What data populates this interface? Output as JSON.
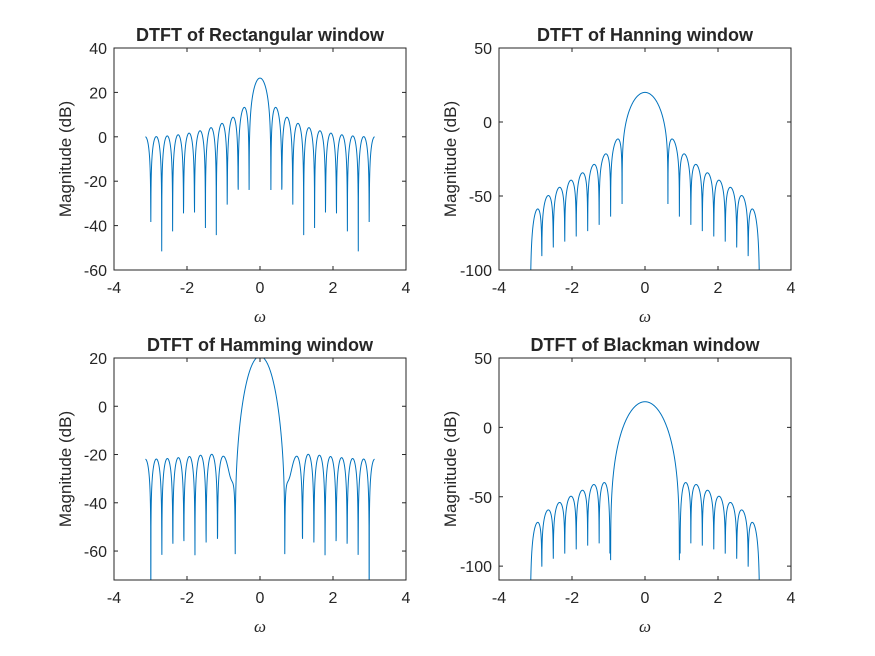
{
  "figure": {
    "background": "#ffffff",
    "line_color": "#0072bd",
    "axis_color": "#262626"
  },
  "chart_data": [
    {
      "type": "line",
      "title": "DTFT of Rectangular window",
      "xlabel": "ω",
      "ylabel": "Magnitude (dB)",
      "xlim": [
        -4,
        4
      ],
      "ylim": [
        -60,
        40
      ],
      "xticks": [
        "-4",
        "-2",
        "0",
        "2",
        "4"
      ],
      "yticks": [
        "-60",
        "-40",
        "-20",
        "0",
        "20",
        "40"
      ],
      "window": "rectangular",
      "N": 21,
      "omega_range": [
        -3.14,
        3.14
      ],
      "series": [
        {
          "x_range": [
            -3.14,
            3.14
          ],
          "peak_db": 26.4,
          "first_sidelobe_db": 13.6
        }
      ]
    },
    {
      "type": "line",
      "title": "DTFT of Hanning window",
      "xlabel": "ω",
      "ylabel": "Magnitude (dB)",
      "xlim": [
        -4,
        4
      ],
      "ylim": [
        -100,
        50
      ],
      "xticks": [
        "-4",
        "-2",
        "0",
        "2",
        "4"
      ],
      "yticks": [
        "-100",
        "-50",
        "0",
        "50"
      ],
      "window": "hanning",
      "N": 21,
      "omega_range": [
        -3.14,
        3.14
      ],
      "series": [
        {
          "x_range": [
            -3.14,
            3.14
          ],
          "peak_db": 20.0,
          "first_sidelobe_db": -12.0
        }
      ]
    },
    {
      "type": "line",
      "title": "DTFT of Hamming window",
      "xlabel": "ω",
      "ylabel": "Magnitude (dB)",
      "xlim": [
        -4,
        4
      ],
      "ylim": [
        -72,
        20
      ],
      "xticks": [
        "-4",
        "-2",
        "0",
        "2",
        "4"
      ],
      "yticks": [
        "-60",
        "-40",
        "-20",
        "0",
        "20"
      ],
      "window": "hamming",
      "N": 21,
      "omega_range": [
        -3.14,
        3.14
      ],
      "series": [
        {
          "x_range": [
            -3.14,
            3.14
          ],
          "peak_db": 20.6,
          "first_sidelobe_db": -21.0
        }
      ]
    },
    {
      "type": "line",
      "title": "DTFT of Blackman window",
      "xlabel": "ω",
      "ylabel": "Magnitude (dB)",
      "xlim": [
        -4,
        4
      ],
      "ylim": [
        -110,
        50
      ],
      "xticks": [
        "-4",
        "-2",
        "0",
        "2",
        "4"
      ],
      "yticks": [
        "-100",
        "-50",
        "0",
        "50"
      ],
      "window": "blackman",
      "N": 21,
      "omega_range": [
        -3.14,
        3.14
      ],
      "series": [
        {
          "x_range": [
            -3.14,
            3.14
          ],
          "peak_db": 18.5,
          "first_sidelobe_db": -40.0
        }
      ]
    }
  ]
}
